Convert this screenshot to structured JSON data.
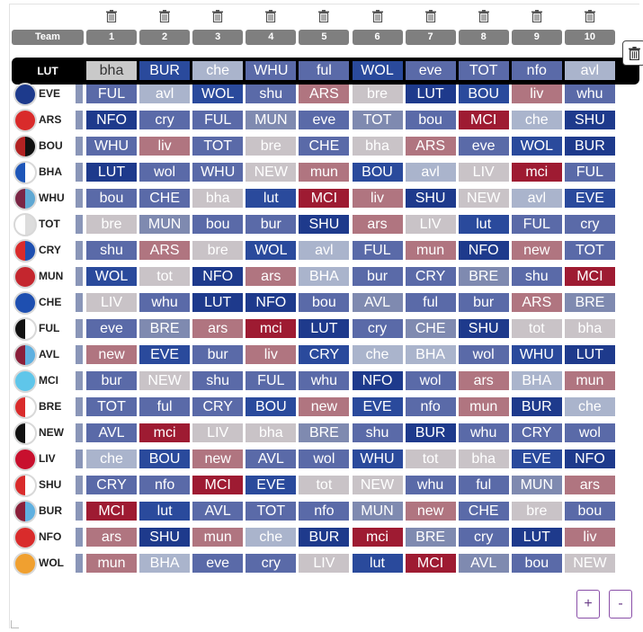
{
  "header": {
    "team_label": "Team",
    "rounds": [
      "1",
      "2",
      "3",
      "4",
      "5",
      "6",
      "7",
      "8",
      "9",
      "10"
    ]
  },
  "colors": {
    "hardest": "#9e1b32",
    "hard": "#b07580",
    "medium": "#c9c3c7",
    "easy_light": "#aab4cc",
    "easy_mid": "#5a6aa8",
    "easiest": "#1e3a8c"
  },
  "selected_team": {
    "name": "LUT",
    "fixtures": [
      {
        "t": "bha",
        "c": "#c9c9c9",
        "fc": "#333"
      },
      {
        "t": "BUR",
        "c": "#2a4a9c"
      },
      {
        "t": "che",
        "c": "#aab4cc"
      },
      {
        "t": "WHU",
        "c": "#5a6aa8"
      },
      {
        "t": "ful",
        "c": "#5a6aa8"
      },
      {
        "t": "WOL",
        "c": "#2a4a9c"
      },
      {
        "t": "eve",
        "c": "#5a6aa8"
      },
      {
        "t": "TOT",
        "c": "#5a6aa8"
      },
      {
        "t": "nfo",
        "c": "#5a6aa8"
      },
      {
        "t": "avl",
        "c": "#aab4cc"
      }
    ]
  },
  "teams": [
    {
      "name": "EVE",
      "badge": [
        "#1d3a8c",
        "#1d3a8c"
      ],
      "fixtures": [
        {
          "t": "FUL",
          "c": "#5a6aa8"
        },
        {
          "t": "avl",
          "c": "#aab4cc"
        },
        {
          "t": "WOL",
          "c": "#2a4a9c"
        },
        {
          "t": "shu",
          "c": "#5a6aa8"
        },
        {
          "t": "ARS",
          "c": "#b07580"
        },
        {
          "t": "bre",
          "c": "#c9c3c7"
        },
        {
          "t": "LUT",
          "c": "#1e3a8c"
        },
        {
          "t": "BOU",
          "c": "#2a4a9c"
        },
        {
          "t": "liv",
          "c": "#b07580"
        },
        {
          "t": "whu",
          "c": "#5a6aa8"
        }
      ]
    },
    {
      "name": "ARS",
      "badge": [
        "#d92b2b",
        "#d92b2b"
      ],
      "fixtures": [
        {
          "t": "NFO",
          "c": "#1e3a8c"
        },
        {
          "t": "cry",
          "c": "#5a6aa8"
        },
        {
          "t": "FUL",
          "c": "#5a6aa8"
        },
        {
          "t": "MUN",
          "c": "#7f8ab0"
        },
        {
          "t": "eve",
          "c": "#5a6aa8"
        },
        {
          "t": "TOT",
          "c": "#7f8ab0"
        },
        {
          "t": "bou",
          "c": "#5a6aa8"
        },
        {
          "t": "MCI",
          "c": "#9e1b32"
        },
        {
          "t": "che",
          "c": "#aab4cc"
        },
        {
          "t": "SHU",
          "c": "#1e3a8c"
        }
      ]
    },
    {
      "name": "BOU",
      "badge": [
        "#b22222",
        "#111111"
      ],
      "fixtures": [
        {
          "t": "WHU",
          "c": "#5a6aa8"
        },
        {
          "t": "liv",
          "c": "#b07580"
        },
        {
          "t": "TOT",
          "c": "#5a6aa8"
        },
        {
          "t": "bre",
          "c": "#c9c3c7"
        },
        {
          "t": "CHE",
          "c": "#5a6aa8"
        },
        {
          "t": "bha",
          "c": "#c9c3c7"
        },
        {
          "t": "ARS",
          "c": "#b07580"
        },
        {
          "t": "eve",
          "c": "#5a6aa8"
        },
        {
          "t": "WOL",
          "c": "#2a4a9c"
        },
        {
          "t": "BUR",
          "c": "#1e3a8c"
        }
      ]
    },
    {
      "name": "BHA",
      "badge": [
        "#1e56b8",
        "#ffffff"
      ],
      "fixtures": [
        {
          "t": "LUT",
          "c": "#1e3a8c"
        },
        {
          "t": "wol",
          "c": "#5a6aa8"
        },
        {
          "t": "WHU",
          "c": "#5a6aa8"
        },
        {
          "t": "NEW",
          "c": "#c9c3c7"
        },
        {
          "t": "mun",
          "c": "#b07580"
        },
        {
          "t": "BOU",
          "c": "#2a4a9c"
        },
        {
          "t": "avl",
          "c": "#aab4cc"
        },
        {
          "t": "LIV",
          "c": "#c9c3c7"
        },
        {
          "t": "mci",
          "c": "#9e1b32"
        },
        {
          "t": "FUL",
          "c": "#5a6aa8"
        }
      ]
    },
    {
      "name": "WHU",
      "badge": [
        "#7a2645",
        "#5fa8d3"
      ],
      "fixtures": [
        {
          "t": "bou",
          "c": "#5a6aa8"
        },
        {
          "t": "CHE",
          "c": "#5a6aa8"
        },
        {
          "t": "bha",
          "c": "#c9c3c7"
        },
        {
          "t": "lut",
          "c": "#2a4a9c"
        },
        {
          "t": "MCI",
          "c": "#9e1b32"
        },
        {
          "t": "liv",
          "c": "#b07580"
        },
        {
          "t": "SHU",
          "c": "#1e3a8c"
        },
        {
          "t": "NEW",
          "c": "#c9c3c7"
        },
        {
          "t": "avl",
          "c": "#aab4cc"
        },
        {
          "t": "EVE",
          "c": "#2a4a9c"
        }
      ]
    },
    {
      "name": "TOT",
      "badge": [
        "#ffffff",
        "#dddddd"
      ],
      "fixtures": [
        {
          "t": "bre",
          "c": "#c9c3c7"
        },
        {
          "t": "MUN",
          "c": "#7f8ab0"
        },
        {
          "t": "bou",
          "c": "#5a6aa8"
        },
        {
          "t": "bur",
          "c": "#5a6aa8"
        },
        {
          "t": "SHU",
          "c": "#1e3a8c"
        },
        {
          "t": "ars",
          "c": "#b07580"
        },
        {
          "t": "LIV",
          "c": "#c9c3c7"
        },
        {
          "t": "lut",
          "c": "#2a4a9c"
        },
        {
          "t": "FUL",
          "c": "#5a6aa8"
        },
        {
          "t": "cry",
          "c": "#5a6aa8"
        }
      ]
    },
    {
      "name": "CRY",
      "badge": [
        "#d92b2b",
        "#1e4fb0"
      ],
      "fixtures": [
        {
          "t": "shu",
          "c": "#5a6aa8"
        },
        {
          "t": "ARS",
          "c": "#b07580"
        },
        {
          "t": "bre",
          "c": "#c9c3c7"
        },
        {
          "t": "WOL",
          "c": "#2a4a9c"
        },
        {
          "t": "avl",
          "c": "#aab4cc"
        },
        {
          "t": "FUL",
          "c": "#5a6aa8"
        },
        {
          "t": "mun",
          "c": "#b07580"
        },
        {
          "t": "NFO",
          "c": "#1e3a8c"
        },
        {
          "t": "new",
          "c": "#b07580"
        },
        {
          "t": "TOT",
          "c": "#5a6aa8"
        }
      ]
    },
    {
      "name": "MUN",
      "badge": [
        "#c4262e",
        "#c4262e"
      ],
      "fixtures": [
        {
          "t": "WOL",
          "c": "#2a4a9c"
        },
        {
          "t": "tot",
          "c": "#c9c3c7"
        },
        {
          "t": "NFO",
          "c": "#1e3a8c"
        },
        {
          "t": "ars",
          "c": "#b07580"
        },
        {
          "t": "BHA",
          "c": "#aab4cc"
        },
        {
          "t": "bur",
          "c": "#5a6aa8"
        },
        {
          "t": "CRY",
          "c": "#5a6aa8"
        },
        {
          "t": "BRE",
          "c": "#7f8ab0"
        },
        {
          "t": "shu",
          "c": "#5a6aa8"
        },
        {
          "t": "MCI",
          "c": "#9e1b32"
        }
      ]
    },
    {
      "name": "CHE",
      "badge": [
        "#1e4fb0",
        "#1e4fb0"
      ],
      "fixtures": [
        {
          "t": "LIV",
          "c": "#c9c3c7"
        },
        {
          "t": "whu",
          "c": "#5a6aa8"
        },
        {
          "t": "LUT",
          "c": "#1e3a8c"
        },
        {
          "t": "NFO",
          "c": "#1e3a8c"
        },
        {
          "t": "bou",
          "c": "#5a6aa8"
        },
        {
          "t": "AVL",
          "c": "#7f8ab0"
        },
        {
          "t": "ful",
          "c": "#5a6aa8"
        },
        {
          "t": "bur",
          "c": "#5a6aa8"
        },
        {
          "t": "ARS",
          "c": "#b07580"
        },
        {
          "t": "BRE",
          "c": "#7f8ab0"
        }
      ]
    },
    {
      "name": "FUL",
      "badge": [
        "#111111",
        "#ffffff"
      ],
      "fixtures": [
        {
          "t": "eve",
          "c": "#5a6aa8"
        },
        {
          "t": "BRE",
          "c": "#7f8ab0"
        },
        {
          "t": "ars",
          "c": "#b07580"
        },
        {
          "t": "mci",
          "c": "#9e1b32"
        },
        {
          "t": "LUT",
          "c": "#1e3a8c"
        },
        {
          "t": "cry",
          "c": "#5a6aa8"
        },
        {
          "t": "CHE",
          "c": "#7f8ab0"
        },
        {
          "t": "SHU",
          "c": "#1e3a8c"
        },
        {
          "t": "tot",
          "c": "#c9c3c7"
        },
        {
          "t": "bha",
          "c": "#c9c3c7"
        }
      ]
    },
    {
      "name": "AVL",
      "badge": [
        "#8a1f3a",
        "#5fb0e0"
      ],
      "fixtures": [
        {
          "t": "new",
          "c": "#b07580"
        },
        {
          "t": "EVE",
          "c": "#2a4a9c"
        },
        {
          "t": "bur",
          "c": "#5a6aa8"
        },
        {
          "t": "liv",
          "c": "#b07580"
        },
        {
          "t": "CRY",
          "c": "#2a4a9c"
        },
        {
          "t": "che",
          "c": "#aab4cc"
        },
        {
          "t": "BHA",
          "c": "#aab4cc"
        },
        {
          "t": "wol",
          "c": "#5a6aa8"
        },
        {
          "t": "WHU",
          "c": "#2a4a9c"
        },
        {
          "t": "LUT",
          "c": "#1e3a8c"
        }
      ]
    },
    {
      "name": "MCI",
      "badge": [
        "#5fc6ea",
        "#5fc6ea"
      ],
      "fixtures": [
        {
          "t": "bur",
          "c": "#5a6aa8"
        },
        {
          "t": "NEW",
          "c": "#c9c3c7"
        },
        {
          "t": "shu",
          "c": "#5a6aa8"
        },
        {
          "t": "FUL",
          "c": "#5a6aa8"
        },
        {
          "t": "whu",
          "c": "#5a6aa8"
        },
        {
          "t": "NFO",
          "c": "#1e3a8c"
        },
        {
          "t": "wol",
          "c": "#5a6aa8"
        },
        {
          "t": "ars",
          "c": "#b07580"
        },
        {
          "t": "BHA",
          "c": "#aab4cc"
        },
        {
          "t": "mun",
          "c": "#b07580"
        }
      ]
    },
    {
      "name": "BRE",
      "badge": [
        "#d92b2b",
        "#ffffff"
      ],
      "fixtures": [
        {
          "t": "TOT",
          "c": "#5a6aa8"
        },
        {
          "t": "ful",
          "c": "#5a6aa8"
        },
        {
          "t": "CRY",
          "c": "#5a6aa8"
        },
        {
          "t": "BOU",
          "c": "#2a4a9c"
        },
        {
          "t": "new",
          "c": "#b07580"
        },
        {
          "t": "EVE",
          "c": "#2a4a9c"
        },
        {
          "t": "nfo",
          "c": "#5a6aa8"
        },
        {
          "t": "mun",
          "c": "#b07580"
        },
        {
          "t": "BUR",
          "c": "#1e3a8c"
        },
        {
          "t": "che",
          "c": "#aab4cc"
        }
      ]
    },
    {
      "name": "NEW",
      "badge": [
        "#111111",
        "#ffffff"
      ],
      "fixtures": [
        {
          "t": "AVL",
          "c": "#5a6aa8"
        },
        {
          "t": "mci",
          "c": "#9e1b32"
        },
        {
          "t": "LIV",
          "c": "#c9c3c7"
        },
        {
          "t": "bha",
          "c": "#c9c3c7"
        },
        {
          "t": "BRE",
          "c": "#7f8ab0"
        },
        {
          "t": "shu",
          "c": "#5a6aa8"
        },
        {
          "t": "BUR",
          "c": "#1e3a8c"
        },
        {
          "t": "whu",
          "c": "#5a6aa8"
        },
        {
          "t": "CRY",
          "c": "#5a6aa8"
        },
        {
          "t": "wol",
          "c": "#5a6aa8"
        }
      ]
    },
    {
      "name": "LIV",
      "badge": [
        "#c8102e",
        "#c8102e"
      ],
      "fixtures": [
        {
          "t": "che",
          "c": "#aab4cc"
        },
        {
          "t": "BOU",
          "c": "#2a4a9c"
        },
        {
          "t": "new",
          "c": "#b07580"
        },
        {
          "t": "AVL",
          "c": "#5a6aa8"
        },
        {
          "t": "wol",
          "c": "#5a6aa8"
        },
        {
          "t": "WHU",
          "c": "#2a4a9c"
        },
        {
          "t": "tot",
          "c": "#c9c3c7"
        },
        {
          "t": "bha",
          "c": "#c9c3c7"
        },
        {
          "t": "EVE",
          "c": "#2a4a9c"
        },
        {
          "t": "NFO",
          "c": "#1e3a8c"
        }
      ]
    },
    {
      "name": "SHU",
      "badge": [
        "#d92b2b",
        "#ffffff"
      ],
      "fixtures": [
        {
          "t": "CRY",
          "c": "#5a6aa8"
        },
        {
          "t": "nfo",
          "c": "#5a6aa8"
        },
        {
          "t": "MCI",
          "c": "#9e1b32"
        },
        {
          "t": "EVE",
          "c": "#2a4a9c"
        },
        {
          "t": "tot",
          "c": "#c9c3c7"
        },
        {
          "t": "NEW",
          "c": "#c9c3c7"
        },
        {
          "t": "whu",
          "c": "#5a6aa8"
        },
        {
          "t": "ful",
          "c": "#5a6aa8"
        },
        {
          "t": "MUN",
          "c": "#7f8ab0"
        },
        {
          "t": "ars",
          "c": "#b07580"
        }
      ]
    },
    {
      "name": "BUR",
      "badge": [
        "#8a1f3a",
        "#5fb0e0"
      ],
      "fixtures": [
        {
          "t": "MCI",
          "c": "#9e1b32"
        },
        {
          "t": "lut",
          "c": "#2a4a9c"
        },
        {
          "t": "AVL",
          "c": "#5a6aa8"
        },
        {
          "t": "TOT",
          "c": "#5a6aa8"
        },
        {
          "t": "nfo",
          "c": "#5a6aa8"
        },
        {
          "t": "MUN",
          "c": "#7f8ab0"
        },
        {
          "t": "new",
          "c": "#b07580"
        },
        {
          "t": "CHE",
          "c": "#5a6aa8"
        },
        {
          "t": "bre",
          "c": "#c9c3c7"
        },
        {
          "t": "bou",
          "c": "#5a6aa8"
        }
      ]
    },
    {
      "name": "NFO",
      "badge": [
        "#d92b2b",
        "#d92b2b"
      ],
      "fixtures": [
        {
          "t": "ars",
          "c": "#b07580"
        },
        {
          "t": "SHU",
          "c": "#1e3a8c"
        },
        {
          "t": "mun",
          "c": "#b07580"
        },
        {
          "t": "che",
          "c": "#aab4cc"
        },
        {
          "t": "BUR",
          "c": "#1e3a8c"
        },
        {
          "t": "mci",
          "c": "#9e1b32"
        },
        {
          "t": "BRE",
          "c": "#7f8ab0"
        },
        {
          "t": "cry",
          "c": "#5a6aa8"
        },
        {
          "t": "LUT",
          "c": "#1e3a8c"
        },
        {
          "t": "liv",
          "c": "#b07580"
        }
      ]
    },
    {
      "name": "WOL",
      "badge": [
        "#f0a030",
        "#f0a030"
      ],
      "fixtures": [
        {
          "t": "mun",
          "c": "#b07580"
        },
        {
          "t": "BHA",
          "c": "#aab4cc"
        },
        {
          "t": "eve",
          "c": "#5a6aa8"
        },
        {
          "t": "cry",
          "c": "#5a6aa8"
        },
        {
          "t": "LIV",
          "c": "#c9c3c7"
        },
        {
          "t": "lut",
          "c": "#2a4a9c"
        },
        {
          "t": "MCI",
          "c": "#9e1b32"
        },
        {
          "t": "AVL",
          "c": "#7f8ab0"
        },
        {
          "t": "bou",
          "c": "#5a6aa8"
        },
        {
          "t": "NEW",
          "c": "#c9c3c7"
        }
      ]
    }
  ],
  "controls": {
    "add_label": "+",
    "remove_label": "-"
  }
}
